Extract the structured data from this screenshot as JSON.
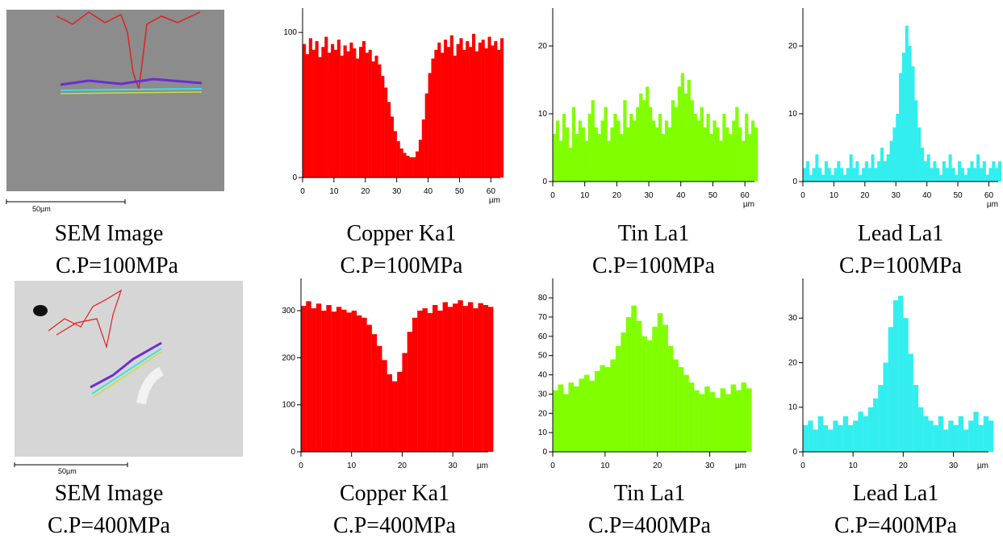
{
  "images": [
    {
      "scale_bar": "50µm",
      "caption": "SEM Image",
      "subtitle": "C.P=100MPa"
    },
    {
      "scale_bar": "50µm",
      "caption": "SEM Image",
      "subtitle": "C.P=400MPa"
    }
  ],
  "chart_data": [
    {
      "type": "bar",
      "title": "Copper Ka1",
      "subtitle": "C.P=100MPa",
      "xlabel": "µm",
      "color": "#ff0000",
      "x": [
        0,
        1,
        2,
        3,
        4,
        5,
        6,
        7,
        8,
        9,
        10,
        11,
        12,
        13,
        14,
        15,
        16,
        17,
        18,
        19,
        20,
        21,
        22,
        23,
        24,
        25,
        26,
        27,
        28,
        29,
        30,
        31,
        32,
        33,
        34,
        35,
        36,
        37,
        38,
        39,
        40,
        41,
        42,
        43,
        44,
        45,
        46,
        47,
        48,
        49,
        50,
        51,
        52,
        53,
        54,
        55,
        56,
        57,
        58,
        59,
        60,
        61,
        62,
        63
      ],
      "values": [
        92,
        85,
        96,
        88,
        94,
        83,
        90,
        97,
        86,
        92,
        88,
        95,
        84,
        91,
        87,
        93,
        89,
        82,
        90,
        94,
        86,
        88,
        80,
        84,
        78,
        70,
        62,
        52,
        42,
        32,
        25,
        20,
        17,
        15,
        14,
        14,
        18,
        26,
        40,
        58,
        72,
        82,
        88,
        93,
        86,
        95,
        90,
        98,
        84,
        92,
        96,
        88,
        94,
        90,
        99,
        87,
        93,
        95,
        89,
        97,
        91,
        94,
        88,
        96
      ],
      "xlim": [
        0,
        63
      ],
      "xticks": [
        0,
        10,
        20,
        30,
        40,
        50,
        60
      ],
      "ylim": [
        0,
        114
      ],
      "yticks": [
        0,
        100
      ]
    },
    {
      "type": "bar",
      "title": "Tin La1",
      "subtitle": "C.P=100MPa",
      "xlabel": "µm",
      "color": "#80ff00",
      "x": [
        0,
        1,
        2,
        3,
        4,
        5,
        6,
        7,
        8,
        9,
        10,
        11,
        12,
        13,
        14,
        15,
        16,
        17,
        18,
        19,
        20,
        21,
        22,
        23,
        24,
        25,
        26,
        27,
        28,
        29,
        30,
        31,
        32,
        33,
        34,
        35,
        36,
        37,
        38,
        39,
        40,
        41,
        42,
        43,
        44,
        45,
        46,
        47,
        48,
        49,
        50,
        51,
        52,
        53,
        54,
        55,
        56,
        57,
        58,
        59,
        60,
        61,
        62,
        63
      ],
      "values": [
        7,
        9,
        6,
        10,
        8,
        5,
        11,
        7,
        9,
        8,
        6,
        10,
        12,
        8,
        7,
        9,
        11,
        6,
        8,
        10,
        9,
        7,
        12,
        8,
        10,
        9,
        11,
        13,
        12,
        14,
        11,
        9,
        8,
        10,
        7,
        9,
        8,
        12,
        11,
        14,
        16,
        13,
        15,
        12,
        10,
        9,
        11,
        8,
        10,
        7,
        9,
        8,
        6,
        10,
        8,
        7,
        9,
        11,
        8,
        6,
        10,
        7,
        9,
        8
      ],
      "xlim": [
        0,
        63
      ],
      "xticks": [
        0,
        10,
        20,
        30,
        40,
        50,
        60
      ],
      "ylim": [
        0,
        25
      ],
      "yticks": [
        0,
        10,
        20
      ]
    },
    {
      "type": "bar",
      "title": "Lead La1",
      "subtitle": "C.P=100MPa",
      "xlabel": "µm",
      "color": "#33eeee",
      "x": [
        0,
        1,
        2,
        3,
        4,
        5,
        6,
        7,
        8,
        9,
        10,
        11,
        12,
        13,
        14,
        15,
        16,
        17,
        18,
        19,
        20,
        21,
        22,
        23,
        24,
        25,
        26,
        27,
        28,
        29,
        30,
        31,
        32,
        33,
        34,
        35,
        36,
        37,
        38,
        39,
        40,
        41,
        42,
        43,
        44,
        45,
        46,
        47,
        48,
        49,
        50,
        51,
        52,
        53,
        54,
        55,
        56,
        57,
        58,
        59,
        60,
        61,
        62,
        63
      ],
      "values": [
        2,
        3,
        1,
        2,
        4,
        2,
        1,
        3,
        2,
        1,
        2,
        3,
        2,
        1,
        2,
        4,
        2,
        3,
        1,
        2,
        3,
        2,
        4,
        2,
        3,
        5,
        3,
        4,
        6,
        8,
        10,
        16,
        19,
        23,
        20,
        17,
        12,
        8,
        5,
        3,
        4,
        2,
        3,
        2,
        1,
        3,
        2,
        4,
        2,
        1,
        3,
        2,
        1,
        2,
        3,
        2,
        4,
        2,
        3,
        1,
        2,
        3,
        2,
        3
      ],
      "xlim": [
        0,
        63
      ],
      "xticks": [
        0,
        10,
        20,
        30,
        40,
        50,
        60
      ],
      "ylim": [
        0,
        25
      ],
      "yticks": [
        0,
        10,
        20
      ]
    },
    {
      "type": "bar",
      "title": "Copper Ka1",
      "subtitle": "C.P=400MPa",
      "xlabel": "µm",
      "color": "#ff0000",
      "x": [
        0,
        1,
        2,
        3,
        4,
        5,
        6,
        7,
        8,
        9,
        10,
        11,
        12,
        13,
        14,
        15,
        16,
        17,
        18,
        19,
        20,
        21,
        22,
        23,
        24,
        25,
        26,
        27,
        28,
        29,
        30,
        31,
        32,
        33,
        34,
        35,
        36,
        37
      ],
      "values": [
        310,
        320,
        305,
        315,
        300,
        312,
        298,
        308,
        302,
        296,
        300,
        290,
        285,
        270,
        250,
        225,
        195,
        165,
        150,
        170,
        210,
        255,
        285,
        300,
        305,
        295,
        312,
        300,
        318,
        308,
        315,
        322,
        310,
        318,
        305,
        316,
        312,
        308
      ],
      "xlim": [
        0,
        37
      ],
      "xticks": [
        0,
        10,
        20,
        30
      ],
      "ylim": [
        0,
        360
      ],
      "yticks": [
        0,
        100,
        200,
        300
      ]
    },
    {
      "type": "bar",
      "title": "Tin La1",
      "subtitle": "C.P=400MPa",
      "xlabel": "µm",
      "color": "#80ff00",
      "x": [
        0,
        1,
        2,
        3,
        4,
        5,
        6,
        7,
        8,
        9,
        10,
        11,
        12,
        13,
        14,
        15,
        16,
        17,
        18,
        19,
        20,
        21,
        22,
        23,
        24,
        25,
        26,
        27,
        28,
        29,
        30,
        31,
        32,
        33,
        34,
        35,
        36,
        37
      ],
      "values": [
        32,
        35,
        30,
        36,
        34,
        38,
        40,
        37,
        42,
        45,
        44,
        48,
        55,
        62,
        70,
        76,
        68,
        60,
        58,
        65,
        72,
        66,
        55,
        48,
        44,
        40,
        36,
        32,
        30,
        34,
        31,
        28,
        33,
        30,
        35,
        32,
        36,
        33
      ],
      "xlim": [
        0,
        37
      ],
      "xticks": [
        0,
        10,
        20,
        30
      ],
      "ylim": [
        0,
        88
      ],
      "yticks": [
        0,
        10,
        20,
        30,
        40,
        50,
        60,
        70,
        80
      ]
    },
    {
      "type": "bar",
      "title": "Lead La1",
      "subtitle": "C.P=400MPa",
      "xlabel": "µm",
      "color": "#33eeee",
      "x": [
        0,
        1,
        2,
        3,
        4,
        5,
        6,
        7,
        8,
        9,
        10,
        11,
        12,
        13,
        14,
        15,
        16,
        17,
        18,
        19,
        20,
        21,
        22,
        23,
        24,
        25,
        26,
        27,
        28,
        29,
        30,
        31,
        32,
        33,
        34,
        35,
        36,
        37
      ],
      "values": [
        6,
        7,
        5,
        8,
        6,
        5,
        7,
        6,
        8,
        6,
        7,
        9,
        8,
        10,
        12,
        15,
        20,
        28,
        34,
        35,
        30,
        22,
        15,
        10,
        8,
        7,
        6,
        8,
        5,
        7,
        6,
        8,
        5,
        7,
        9,
        6,
        8,
        7
      ],
      "xlim": [
        0,
        37
      ],
      "xticks": [
        0,
        10,
        20,
        30
      ],
      "ylim": [
        0,
        38
      ],
      "yticks": [
        0,
        10,
        20,
        30
      ]
    }
  ]
}
